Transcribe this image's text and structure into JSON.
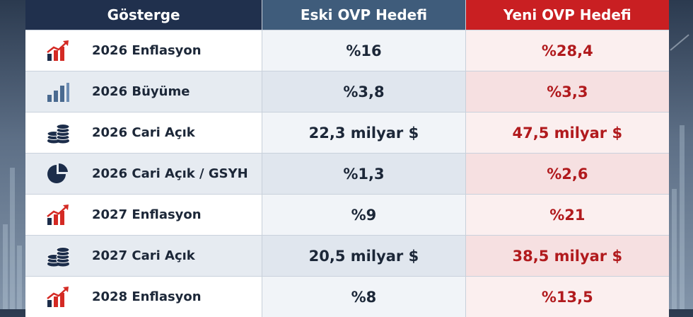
{
  "header": {
    "col_indicator": "Gösterge",
    "col_old": "Eski OVP Hedefi",
    "col_new": "Yeni OVP Hedefi"
  },
  "rows": [
    {
      "icon": "inflation-chart-icon",
      "label": "2026 Enflasyon",
      "old": "%16",
      "new": "%28,4"
    },
    {
      "icon": "growth-bars-icon",
      "label": "2026 Büyüme",
      "old": "%3,8",
      "new": "%3,3"
    },
    {
      "icon": "coins-stack-icon",
      "label": "2026 Cari Açık",
      "old": "22,3 milyar $",
      "new": "47,5 milyar $"
    },
    {
      "icon": "pie-chart-icon",
      "label": "2026 Cari Açık / GSYH",
      "old": "%1,3",
      "new": "%2,6"
    },
    {
      "icon": "inflation-chart-icon",
      "label": "2027 Enflasyon",
      "old": "%9",
      "new": "%21"
    },
    {
      "icon": "coins-stack-icon",
      "label": "2027 Cari Açık",
      "old": "20,5 milyar $",
      "new": "38,5 milyar $"
    },
    {
      "icon": "inflation-chart-icon",
      "label": "2028 Enflasyon",
      "old": "%8",
      "new": "%13,5"
    }
  ],
  "colors": {
    "header_indicator": "#20304d",
    "header_old": "#3f5c7b",
    "header_new": "#c91f22",
    "new_value_text": "#b11a1d",
    "icon_navy": "#1c2d4a",
    "icon_red": "#d42a24",
    "icon_blue": "#4a6a90"
  }
}
